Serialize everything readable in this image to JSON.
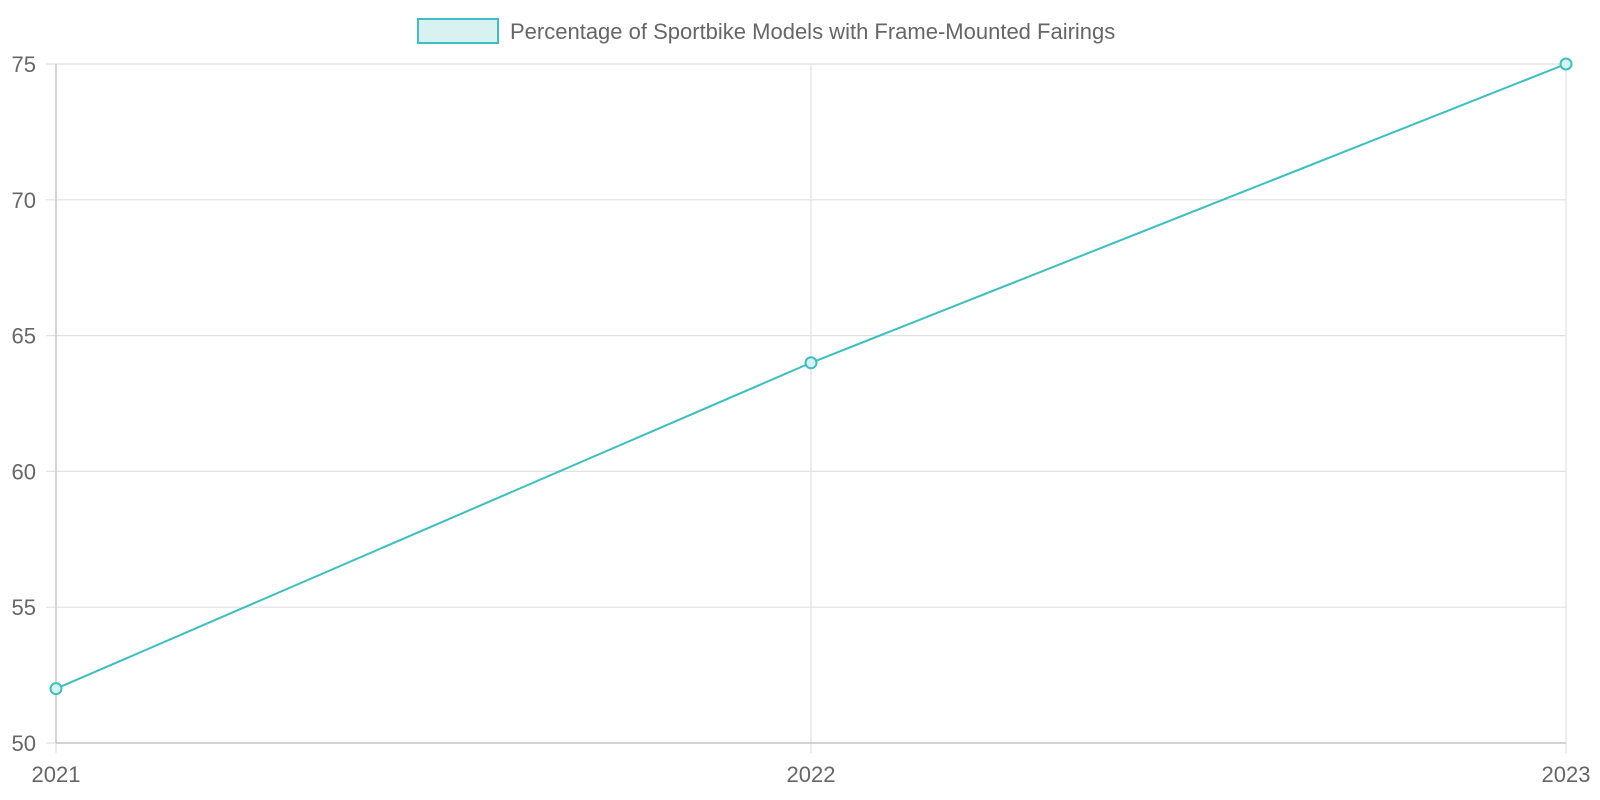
{
  "chart_data": {
    "type": "line",
    "title": "",
    "xlabel": "",
    "ylabel": "",
    "categories": [
      "2021",
      "2022",
      "2023"
    ],
    "series": [
      {
        "name": "Percentage of Sportbike Models with Frame-Mounted Fairings",
        "values": [
          52,
          64,
          75
        ],
        "color": "#3dbfbf",
        "fill": "#d8f2f2"
      }
    ],
    "ylim": [
      50,
      75
    ],
    "yticks": [
      50,
      55,
      60,
      65,
      70,
      75
    ],
    "grid": true,
    "legend": "top-center"
  },
  "colors": {
    "tick_text": "#666666",
    "grid": "#e1e1e1",
    "axis": "#c8c8c8"
  }
}
